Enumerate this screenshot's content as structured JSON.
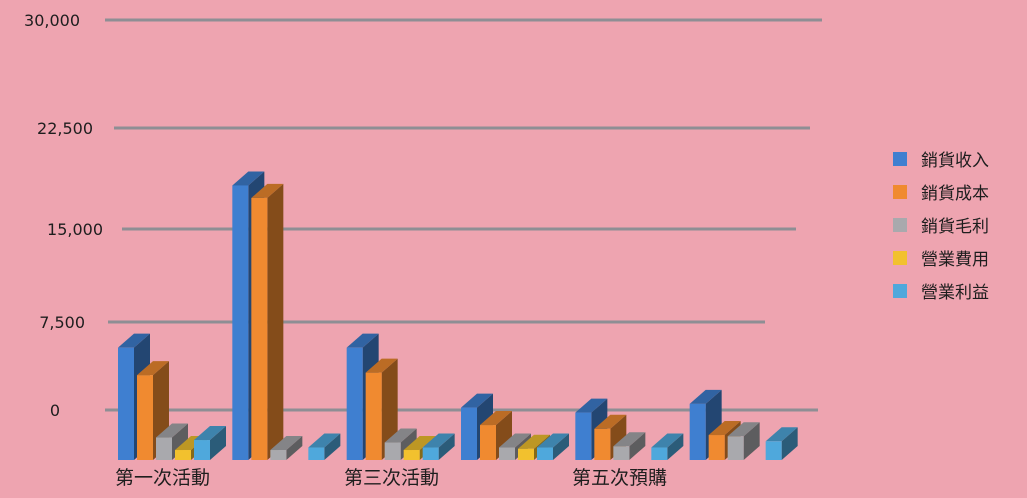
{
  "chart_data": {
    "type": "bar",
    "style": "3d-clustered-column",
    "categories": [
      "第一次活動",
      "",
      "第三次活動",
      "",
      "第五次預購",
      ""
    ],
    "visible_category_labels": [
      "第一次活動",
      "第三次活動",
      "第五次預購"
    ],
    "series": [
      {
        "name": "銷貨收入",
        "color": "#3f7fd0",
        "values": [
          9000,
          22000,
          9000,
          4200,
          3800,
          4500
        ]
      },
      {
        "name": "銷貨成本",
        "color": "#f08a30",
        "values": [
          6800,
          21000,
          7000,
          2800,
          2500,
          2000
        ]
      },
      {
        "name": "銷貨毛利",
        "color": "#a9a9ad",
        "values": [
          1800,
          800,
          1400,
          1000,
          1100,
          1900
        ]
      },
      {
        "name": "營業費用",
        "color": "#f2c12e",
        "values": [
          800,
          0,
          800,
          900,
          0,
          0
        ]
      },
      {
        "name": "營業利益",
        "color": "#4fa8dc",
        "values": [
          1600,
          1000,
          1000,
          1000,
          1000,
          1500
        ]
      }
    ],
    "yticks": [
      0,
      7500,
      15000,
      22500,
      30000
    ],
    "ytick_labels": [
      "0",
      "7,500",
      "15,000",
      "22,500",
      "30,000"
    ],
    "ylim": [
      0,
      30000
    ],
    "grid": true,
    "legend_position": "right"
  }
}
